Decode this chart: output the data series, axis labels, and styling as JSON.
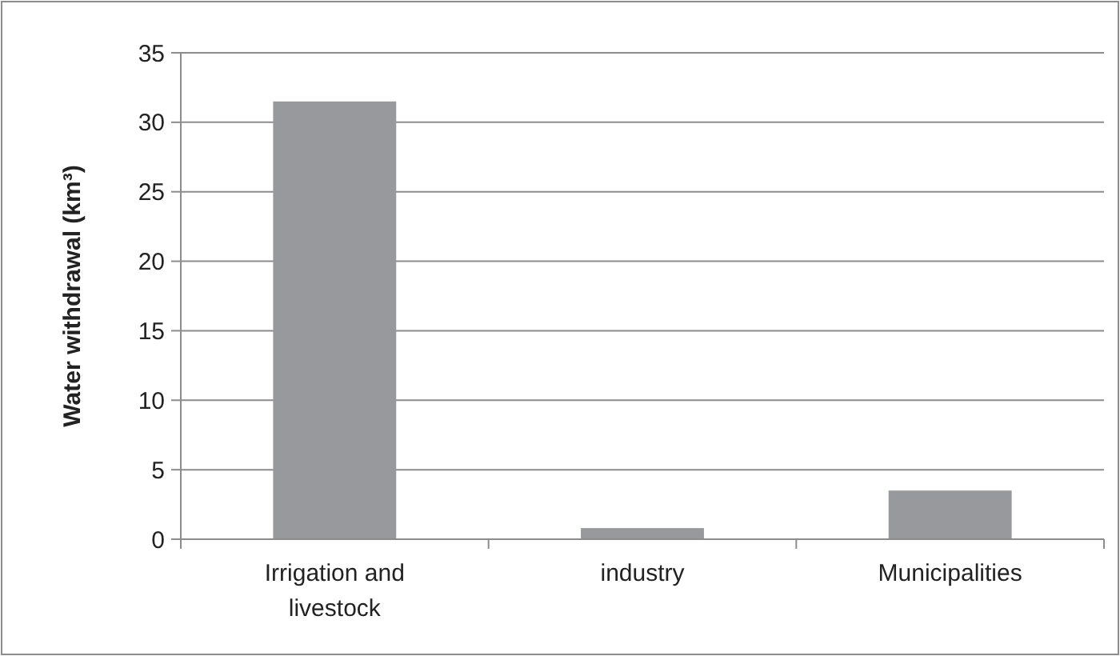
{
  "chart_data": {
    "type": "bar",
    "ylabel": "Water withdrawal (km³)",
    "categories": [
      "Irrigation and livestock",
      "industry",
      "Municipalities"
    ],
    "values": [
      31.5,
      0.8,
      3.5
    ],
    "color": "#98999c",
    "ylim": [
      0,
      35
    ],
    "yticks": [
      0,
      5,
      10,
      15,
      20,
      25,
      30,
      35
    ],
    "grid": "y"
  }
}
